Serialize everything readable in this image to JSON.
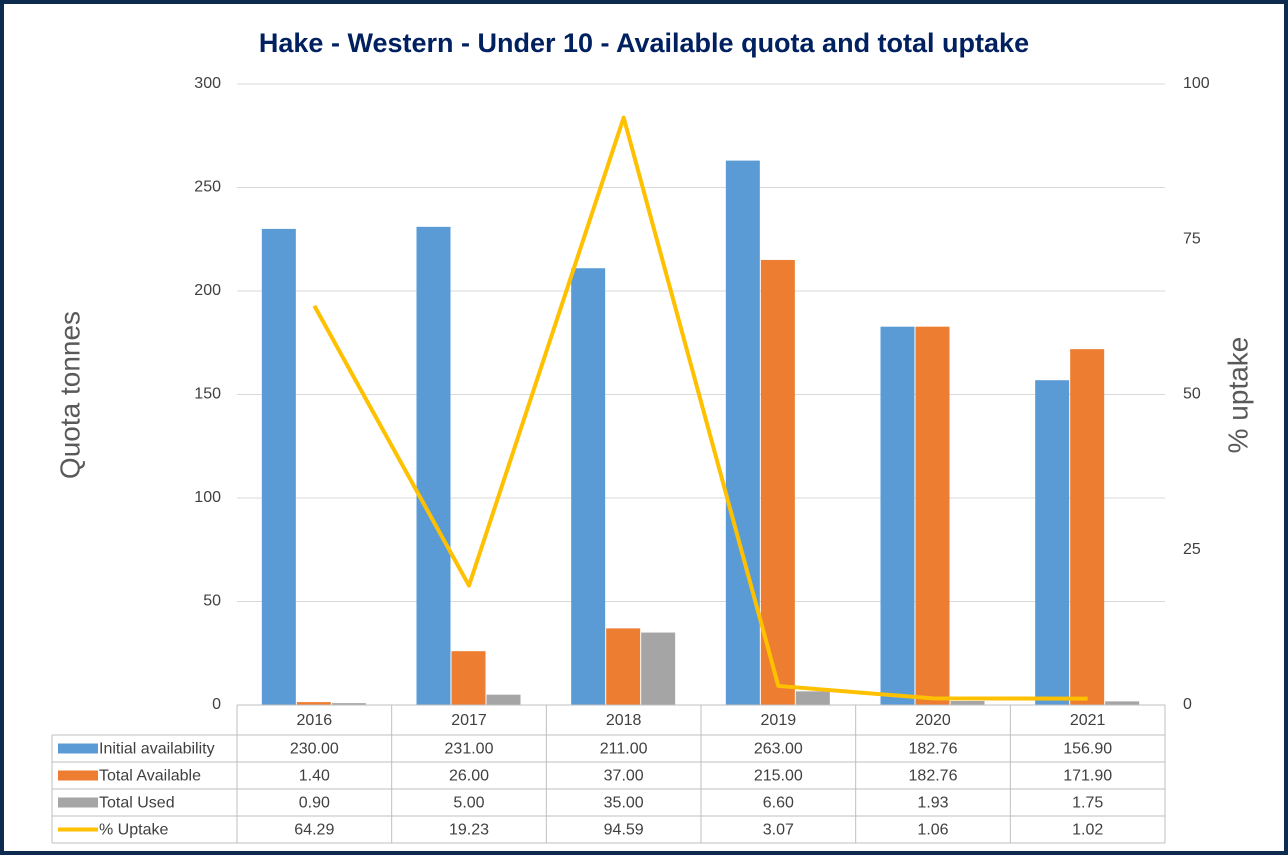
{
  "chart_data": {
    "type": "bar",
    "title": "Hake - Western - Under 10 - Available quota and total uptake",
    "y_label": "Quota tonnes",
    "y2_label": "% uptake",
    "categories": [
      "2016",
      "2017",
      "2018",
      "2019",
      "2020",
      "2021"
    ],
    "series": [
      {
        "name": "Initial availability",
        "color": "#5b9bd5",
        "values": [
          230,
          231,
          211,
          263,
          182.76,
          156.9
        ],
        "value_labels": [
          "230.00",
          "231.00",
          "211.00",
          "263.00",
          "182.76",
          "156.90"
        ]
      },
      {
        "name": "Total Available",
        "color": "#ed7d31",
        "values": [
          1.4,
          26,
          37,
          215,
          182.76,
          171.9
        ],
        "value_labels": [
          "1.40",
          "26.00",
          "37.00",
          "215.00",
          "182.76",
          "171.90"
        ]
      },
      {
        "name": "Total Used",
        "color": "#a5a5a5",
        "values": [
          0.9,
          5,
          35,
          6.6,
          1.93,
          1.75
        ],
        "value_labels": [
          "0.90",
          "5.00",
          "35.00",
          "6.60",
          "1.93",
          "1.75"
        ]
      },
      {
        "name": "% Uptake",
        "color": "#ffc000",
        "type": "line",
        "axis": "y2",
        "values": [
          64.29,
          19.23,
          94.59,
          3.07,
          1.06,
          1.02
        ],
        "value_labels": [
          "64.29",
          "19.23",
          "94.59",
          "3.07",
          "1.06",
          "1.02"
        ]
      }
    ],
    "ylim": [
      0,
      300
    ],
    "yticks": [
      0,
      50,
      100,
      150,
      200,
      250,
      300
    ],
    "y2lim": [
      0,
      100
    ],
    "y2ticks": [
      0,
      25,
      50,
      75,
      100
    ],
    "grid": true
  }
}
